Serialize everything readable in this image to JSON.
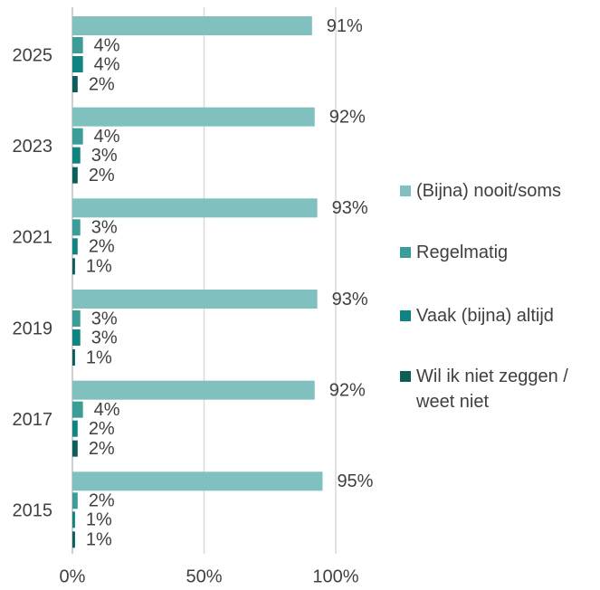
{
  "chart_data": {
    "type": "bar",
    "orientation": "horizontal",
    "categories": [
      "2025",
      "2023",
      "2021",
      "2019",
      "2017",
      "2015"
    ],
    "series": [
      {
        "name": "(Bijna) nooit/soms",
        "color": "#80c0bf",
        "values": [
          91,
          92,
          93,
          93,
          92,
          95
        ],
        "value_labels": [
          "91%",
          "92%",
          "93%",
          "93%",
          "92%",
          "95%"
        ]
      },
      {
        "name": "Regelmatig",
        "color": "#3c9c98",
        "values": [
          4,
          4,
          3,
          3,
          4,
          2
        ],
        "value_labels": [
          "4%",
          "4%",
          "3%",
          "3%",
          "4%",
          "2%"
        ]
      },
      {
        "name": "Vaak (bijna) altijd",
        "color": "#0f8481",
        "values": [
          4,
          3,
          2,
          3,
          2,
          1
        ],
        "value_labels": [
          "4%",
          "3%",
          "2%",
          "3%",
          "2%",
          "1%"
        ]
      },
      {
        "name": "Wil ik niet zeggen / weet niet",
        "color": "#0b5e5c",
        "values": [
          2,
          2,
          1,
          1,
          2,
          1
        ],
        "value_labels": [
          "2%",
          "2%",
          "1%",
          "1%",
          "2%",
          "1%"
        ]
      }
    ],
    "xlim": [
      0,
      100
    ],
    "xticks": [
      {
        "value": 0,
        "label": "0%"
      },
      {
        "value": 50,
        "label": "50%"
      },
      {
        "value": 100,
        "label": "100%"
      }
    ],
    "grid": true,
    "legend": "right"
  }
}
